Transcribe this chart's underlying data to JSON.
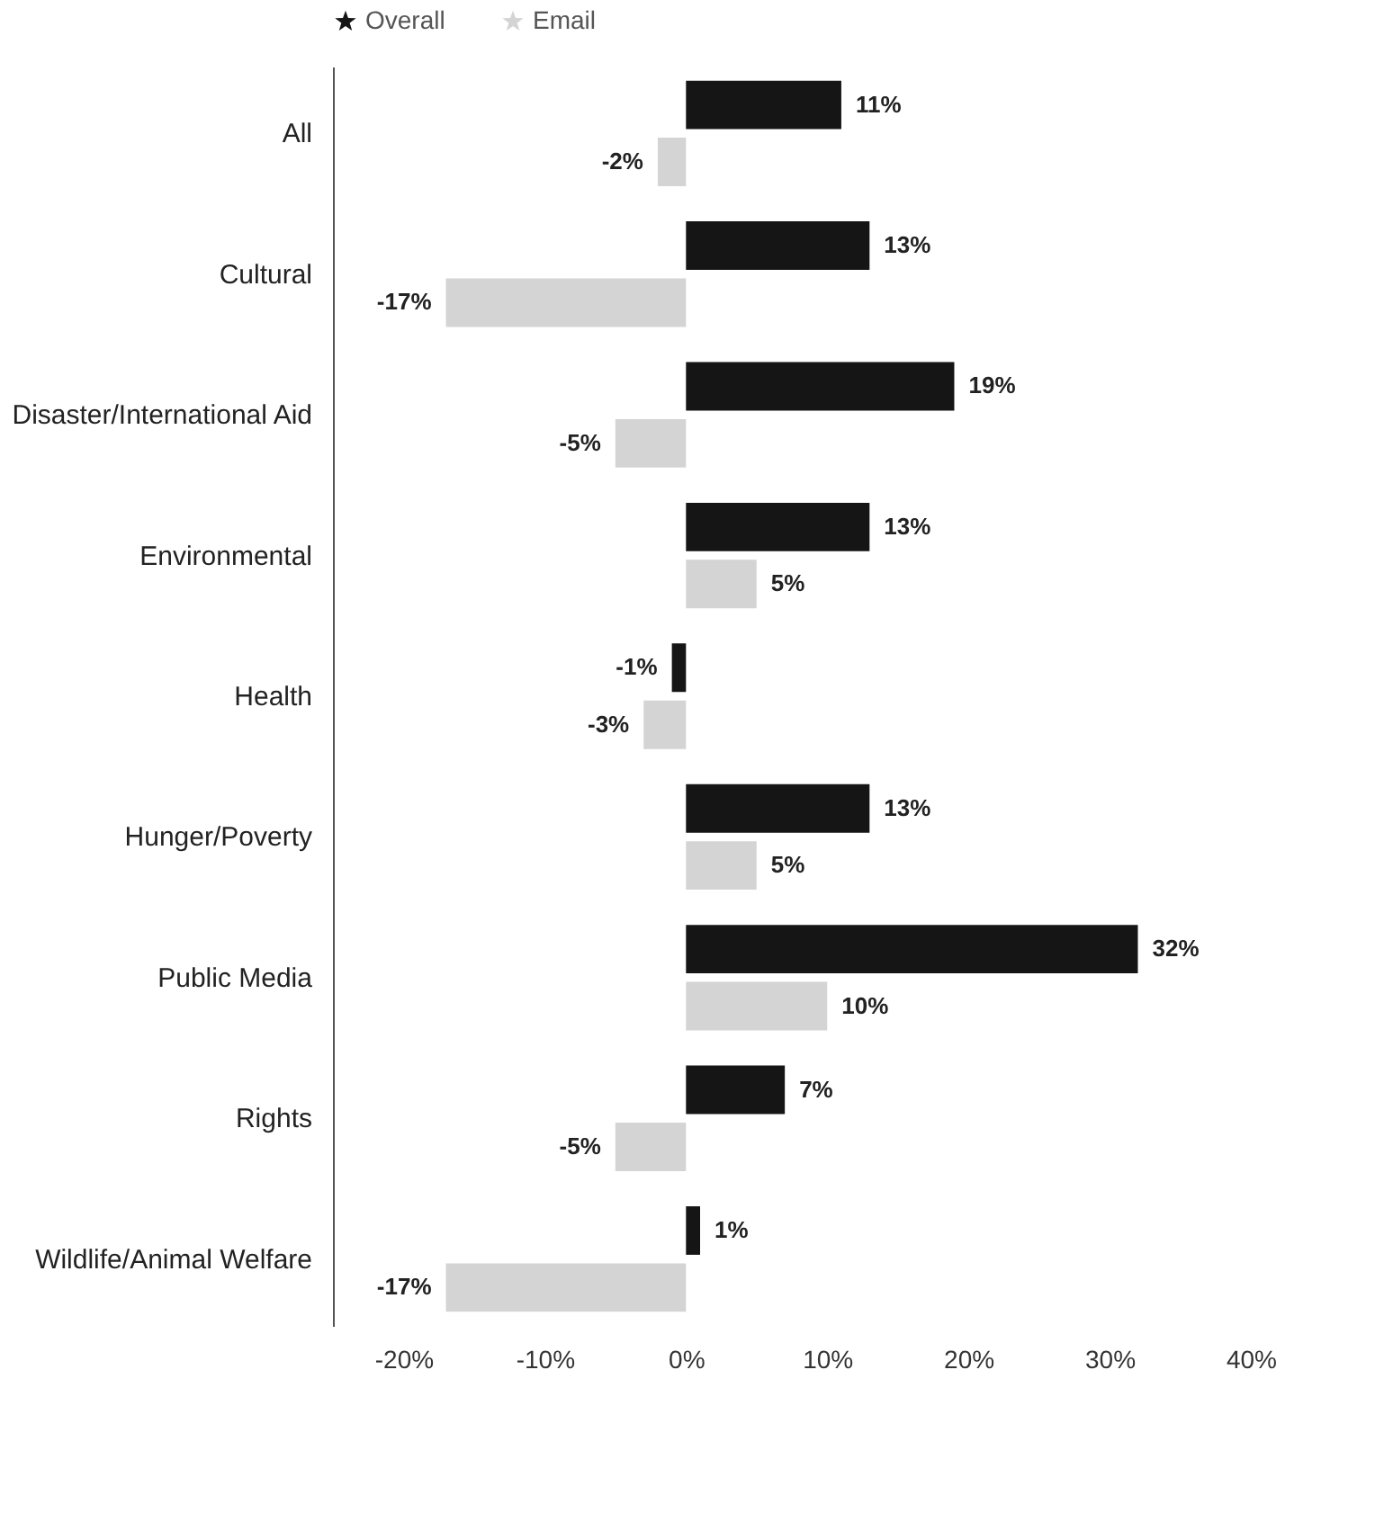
{
  "chart_data": {
    "type": "bar",
    "orientation": "horizontal",
    "categories": [
      "All",
      "Cultural",
      "Disaster/International Aid",
      "Environmental",
      "Health",
      "Hunger/Poverty",
      "Public Media",
      "Rights",
      "Wildlife/Animal Welfare"
    ],
    "series": [
      {
        "name": "Overall",
        "color": "#151515",
        "values": [
          11,
          13,
          19,
          13,
          -1,
          13,
          32,
          7,
          1
        ],
        "value_labels": [
          "11%",
          "13%",
          "19%",
          "13%",
          "-1%",
          "13%",
          "32%",
          "7%",
          "1%"
        ]
      },
      {
        "name": "Email",
        "color": "#d4d4d4",
        "values": [
          -2,
          -17,
          -5,
          5,
          -3,
          5,
          10,
          -5,
          -17
        ],
        "value_labels": [
          "-2%",
          "-17%",
          "-5%",
          "5%",
          "-3%",
          "5%",
          "10%",
          "-5%",
          "-17%"
        ]
      }
    ],
    "xlim": [
      -25,
      40
    ],
    "xticks": [
      {
        "value": -20,
        "label": "-20%"
      },
      {
        "value": -10,
        "label": "-10%"
      },
      {
        "value": 0,
        "label": "0%"
      },
      {
        "value": 10,
        "label": "10%"
      },
      {
        "value": 20,
        "label": "20%"
      },
      {
        "value": 30,
        "label": "30%"
      },
      {
        "value": 40,
        "label": "40%"
      }
    ],
    "grid": false,
    "legend": "top"
  }
}
